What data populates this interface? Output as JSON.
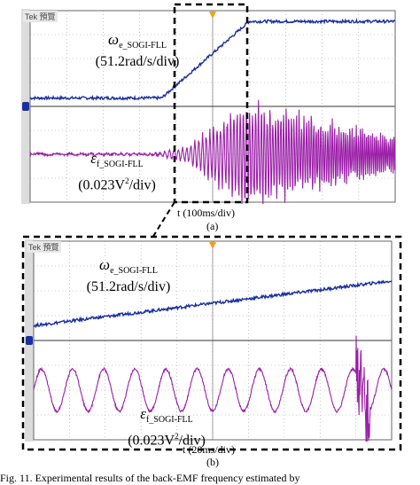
{
  "chart_data": [
    {
      "type": "line",
      "panel_label": "(a)",
      "time_base_label": "t (100ms/div)",
      "scope_header": "Tek",
      "scope_status": "預覽",
      "grid": true,
      "divisions": {
        "x": 10,
        "y": 8
      },
      "series": [
        {
          "symbol": "ω",
          "subscript": "e_SOGI-FLL",
          "scale": "(51.2rad/s/div)",
          "color": "#1a2f9e",
          "shape": "ramp",
          "x": [
            0,
            3.6,
            6.0,
            10
          ],
          "y": [
            0.35,
            0.35,
            3.55,
            3.55
          ]
        },
        {
          "symbol": "ε",
          "subscript": "f_SOGI-FLL",
          "scale_pre": "(0.023V",
          "scale_sup": "2",
          "scale_post": "/div)",
          "color": "#9b1fa8",
          "shape": "oscillation",
          "x": [
            0,
            3.5,
            4.4,
            5.2,
            6.0,
            10
          ],
          "y_envelope": [
            0.04,
            0.04,
            0.45,
            1.5,
            2.3,
            0.8
          ]
        }
      ]
    },
    {
      "type": "line",
      "panel_label": "(b)",
      "time_base_label": "t (20ms/div)",
      "scope_header": "Tek",
      "scope_status": "預覽",
      "grid": true,
      "divisions": {
        "x": 10,
        "y": 8
      },
      "series": [
        {
          "symbol": "ω",
          "subscript": "e_SOGI-FLL",
          "scale": "(51.2rad/s/div)",
          "color": "#1a2f9e",
          "shape": "ramp",
          "x": [
            0,
            10
          ],
          "y": [
            0.6,
            2.4
          ]
        },
        {
          "symbol": "ε",
          "subscript": "f_SOGI-FLL",
          "scale_pre": "(0.023V",
          "scale_sup": "2",
          "scale_post": "/div)",
          "color": "#9b1fa8",
          "shape": "oscillation",
          "cycles": 11.5,
          "amplitude_divs": 0.85
        }
      ]
    }
  ],
  "caption": "Fig. 11.   Experimental results of the back-EMF frequency estimated by"
}
